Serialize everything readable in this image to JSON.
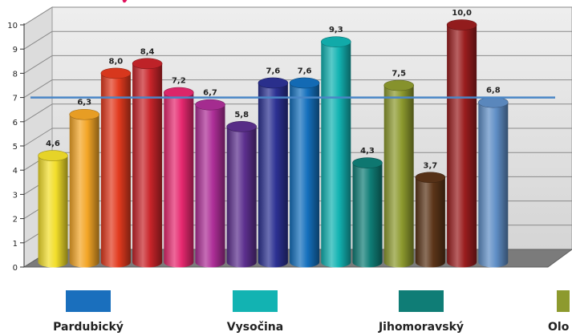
{
  "chart_data": {
    "type": "bar",
    "title": "",
    "xlabel": "",
    "ylabel": "",
    "ylim": [
      0,
      10
    ],
    "yticks": [
      "0",
      "1",
      "2",
      "3",
      "4",
      "5",
      "6",
      "7",
      "8",
      "9",
      "10"
    ],
    "grid": true,
    "bar_style": "3d-cylinder",
    "values": [
      4.6,
      6.3,
      8.0,
      8.4,
      7.2,
      6.7,
      5.8,
      7.6,
      7.6,
      9.3,
      4.3,
      7.5,
      3.7,
      10.0,
      6.8
    ],
    "value_labels": [
      "4,6",
      "6,3",
      "8,0",
      "8,4",
      "7,2",
      "6,7",
      "5,8",
      "7,6",
      "7,6",
      "9,3",
      "4,3",
      "7,5",
      "3,7",
      "10,0",
      "6,8"
    ],
    "colors": [
      "#f2de2a",
      "#f3a526",
      "#e23a1e",
      "#c8242a",
      "#e6286f",
      "#ad2e97",
      "#5c2f8e",
      "#2c3193",
      "#1470bd",
      "#12b3b2",
      "#0f7d76",
      "#8d9a2e",
      "#5b3418",
      "#9a1d1e",
      "#5f8ec6"
    ],
    "reference_line": {
      "value": 6.8,
      "color": "#4a86c6"
    }
  },
  "legend": [
    {
      "label": "Pardubický",
      "color": "#1a6fbd"
    },
    {
      "label": "Vysočina",
      "color": "#12b3b2"
    },
    {
      "label": "Jihomoravský",
      "color": "#0f7d76"
    },
    {
      "label": "Olo",
      "color": "#8d9a2e"
    }
  ]
}
